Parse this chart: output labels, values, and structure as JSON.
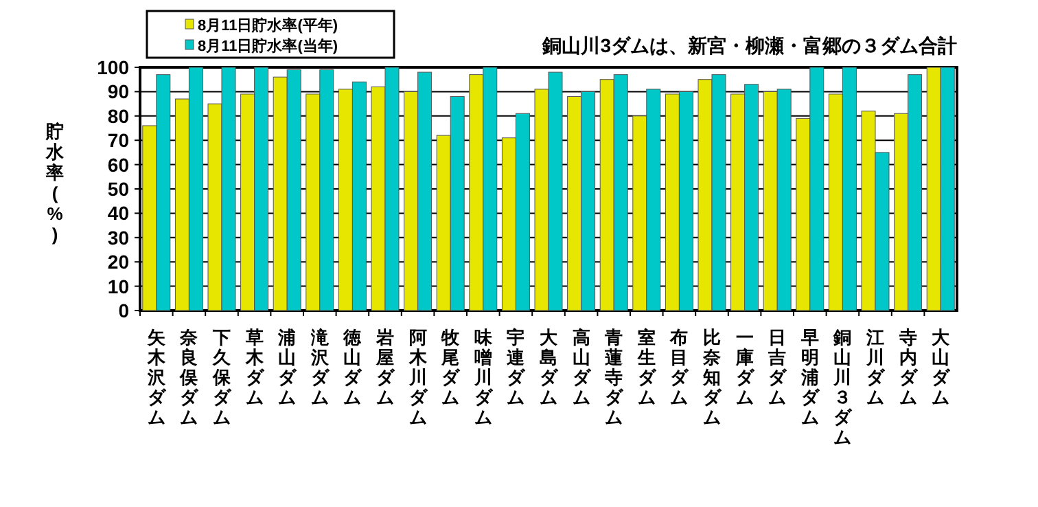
{
  "chart_data": {
    "type": "bar",
    "annotations": [
      "銅山川3ダムは、新宮・柳瀬・富郷の３ダム合計"
    ],
    "ylabel": "貯水率(%)",
    "categories": [
      "矢木沢ダム",
      "奈良俣ダム",
      "下久保ダム",
      "草木ダム",
      "浦山ダム",
      "滝沢ダム",
      "徳山ダム",
      "岩屋ダム",
      "阿木川ダム",
      "牧尾ダム",
      "味噌川ダム",
      "宇連ダム",
      "大島ダム",
      "高山ダム",
      "青蓮寺ダム",
      "室生ダム",
      "布目ダム",
      "比奈知ダム",
      "一庫ダム",
      "日吉ダム",
      "早明浦ダム",
      "銅山川３ダム",
      "江川ダム",
      "寺内ダム",
      "大山ダム"
    ],
    "series": [
      {
        "name": "8月11日貯水率(平年)",
        "color": "#e6e600",
        "values": [
          76,
          87,
          85,
          89,
          96,
          89,
          91,
          92,
          90,
          72,
          97,
          71,
          91,
          88,
          95,
          80,
          89,
          95,
          89,
          90,
          79,
          89,
          82,
          81,
          100
        ]
      },
      {
        "name": "8月11日貯水率(当年)",
        "color": "#00c8c8",
        "values": [
          97,
          100,
          100,
          100,
          99,
          99,
          94,
          100,
          98,
          88,
          100,
          81,
          98,
          90,
          97,
          91,
          90,
          97,
          93,
          91,
          100,
          100,
          65,
          97,
          100
        ]
      }
    ],
    "ylim": [
      0,
      100
    ],
    "yticks": [
      0,
      10,
      20,
      30,
      40,
      50,
      60,
      70,
      80,
      90,
      100
    ],
    "grid": "y",
    "legend": "top left"
  }
}
